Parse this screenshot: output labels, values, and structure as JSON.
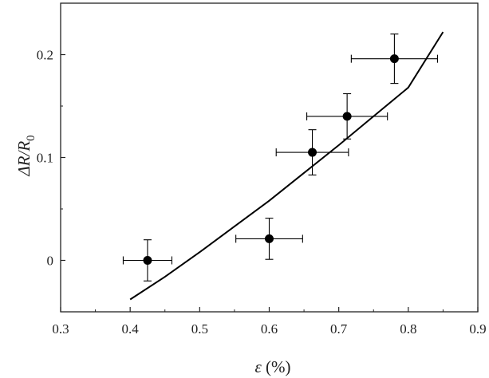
{
  "chart_data": {
    "type": "scatter",
    "xlabel": {
      "symbol": "ε",
      "unit": " (%)"
    },
    "ylabel": {
      "symbol": "ΔR/R",
      "subscript": "0"
    },
    "xlim": [
      0.3,
      0.9
    ],
    "ylim": [
      -0.05,
      0.25
    ],
    "xticks": [
      0.3,
      0.4,
      0.5,
      0.6,
      0.7,
      0.8,
      0.9
    ],
    "yticks": [
      0,
      0.1,
      0.2
    ],
    "xtick_labels": [
      "0.3",
      "0.4",
      "0.5",
      "0.6",
      "0.7",
      "0.8",
      "0.9"
    ],
    "ytick_labels": [
      "0",
      "0.1",
      "0.2"
    ],
    "grid": false,
    "points": [
      {
        "x": 0.425,
        "y": 0.0,
        "xerr": 0.035,
        "yerr": 0.02
      },
      {
        "x": 0.6,
        "y": 0.021,
        "xerr": 0.048,
        "yerr": 0.02
      },
      {
        "x": 0.662,
        "y": 0.105,
        "xerr": 0.052,
        "yerr": 0.022
      },
      {
        "x": 0.712,
        "y": 0.14,
        "xerr": 0.058,
        "yerr": 0.022
      },
      {
        "x": 0.78,
        "y": 0.196,
        "xerr": 0.062,
        "yerr": 0.024
      }
    ],
    "fit_curve": {
      "x": [
        0.4,
        0.45,
        0.5,
        0.55,
        0.6,
        0.65,
        0.7,
        0.75,
        0.8,
        0.85
      ],
      "y": [
        -0.038,
        -0.016,
        0.008,
        0.033,
        0.058,
        0.085,
        0.112,
        0.14,
        0.168,
        0.222
      ]
    },
    "colors": {
      "marker": "#000000",
      "line": "#000000",
      "axis": "#222222"
    }
  }
}
